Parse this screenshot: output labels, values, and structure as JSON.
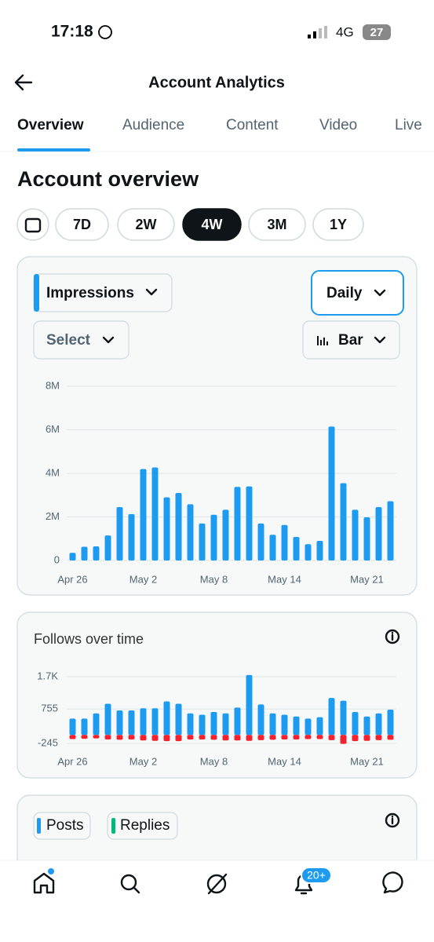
{
  "status_bar": {
    "time": "17:18",
    "network": "4G",
    "battery": "27"
  },
  "header": {
    "title": "Account Analytics"
  },
  "tabs": [
    "Overview",
    "Audience",
    "Content",
    "Video",
    "Live"
  ],
  "section_title": "Account overview",
  "periods": [
    "7D",
    "2W",
    "4W",
    "3M",
    "1Y"
  ],
  "impressions_card": {
    "metric": "Impressions",
    "interval": "Daily",
    "select": "Select",
    "chart_style": "Bar"
  },
  "chart_data": [
    {
      "type": "bar",
      "color": "#1d9bf0",
      "grid": true,
      "categories": [
        "Apr 26",
        null,
        null,
        null,
        null,
        null,
        "May 2",
        null,
        null,
        null,
        null,
        null,
        "May 8",
        null,
        null,
        null,
        null,
        null,
        "May 14",
        null,
        null,
        null,
        null,
        null,
        null,
        "May 21",
        null,
        null
      ],
      "values": [
        350000,
        630000,
        650000,
        1150000,
        2450000,
        2130000,
        4200000,
        4270000,
        2900000,
        3100000,
        2580000,
        1700000,
        2100000,
        2330000,
        3380000,
        3400000,
        1700000,
        1180000,
        1630000,
        1080000,
        750000,
        900000,
        6150000,
        3550000,
        2330000,
        1980000,
        2450000,
        2720000
      ],
      "ylim": [
        0,
        8000000
      ],
      "yticks": [
        0,
        {
          "value": 2000000,
          "label": "2M"
        },
        {
          "value": 4000000,
          "label": "4M"
        },
        {
          "value": 6000000,
          "label": "6M"
        },
        {
          "value": 8000000,
          "label": "8M"
        }
      ]
    },
    {
      "type": "bar",
      "title": "Follows over time",
      "grid": true,
      "categories": [
        "Apr 26",
        null,
        null,
        null,
        null,
        null,
        "May 2",
        null,
        null,
        null,
        null,
        null,
        "May 8",
        null,
        null,
        null,
        null,
        null,
        "May 14",
        null,
        null,
        null,
        null,
        null,
        null,
        "May 21",
        null,
        null
      ],
      "series": [
        {
          "color": "#1d9bf0",
          "values": [
            480,
            480,
            630,
            910,
            715,
            715,
            780,
            780,
            980,
            910,
            630,
            590,
            670,
            630,
            800,
            1750,
            890,
            630,
            590,
            540,
            480,
            520,
            1080,
            1000,
            670,
            540,
            630,
            740
          ]
        },
        {
          "color": "#f4212e",
          "values": [
            -120,
            -110,
            -100,
            -130,
            -140,
            -130,
            -160,
            -170,
            -180,
            -180,
            -130,
            -130,
            -140,
            -160,
            -160,
            -170,
            -150,
            -140,
            -130,
            -130,
            -120,
            -120,
            -150,
            -260,
            -180,
            -170,
            -150,
            -140
          ]
        }
      ],
      "ylim": [
        -245,
        1700
      ],
      "yticks": [
        -245,
        755,
        {
          "value": 1700,
          "label": "1.7K"
        }
      ]
    }
  ],
  "posts_card": {
    "legend": [
      "Posts",
      "Replies"
    ]
  },
  "nav": {
    "badge": "20+"
  }
}
